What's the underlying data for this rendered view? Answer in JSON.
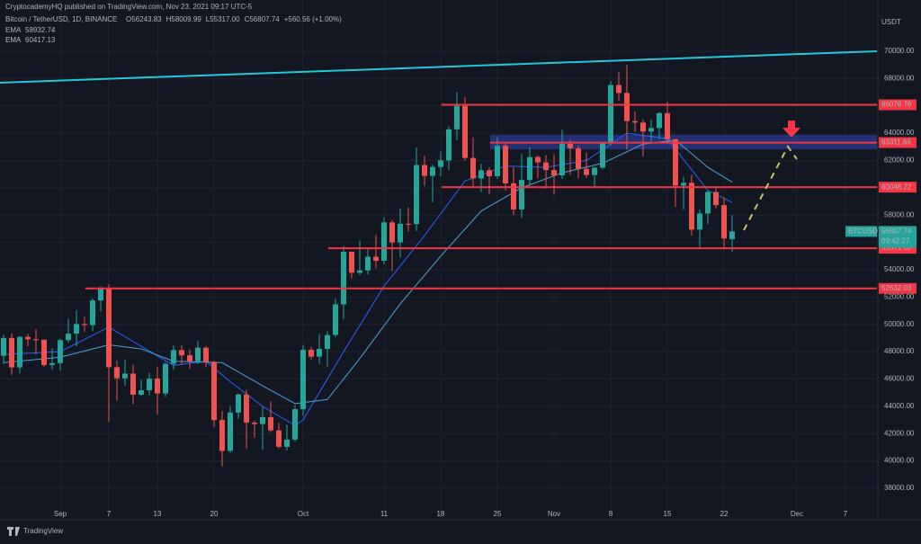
{
  "header": {
    "publisher": "CryptocademyHQ published on TradingView.com, Nov 23, 2021 09:17 UTC-5",
    "symbol_line": "Bitcoin / TetherUSD, 1D, BINANCE",
    "ohlc": [
      "O56243.83",
      "H58009.99",
      "L55317.00",
      "C56807.74",
      "+560.56 (+1.00%)"
    ],
    "brand": "TradingView"
  },
  "chart_data": {
    "type": "candlestick",
    "currency": "USDT",
    "symbol": "BTCUSDT",
    "countdown": "09:42:27",
    "up_color": "#26a69a",
    "down_color": "#ef5350",
    "x": [
      -7,
      -6,
      -5,
      -4,
      -3,
      -2,
      -1,
      0,
      1,
      2,
      3,
      4,
      5,
      6,
      7,
      8,
      9,
      10,
      11,
      12,
      13,
      14,
      15,
      16,
      17,
      18,
      19,
      20,
      21,
      22,
      23,
      24,
      25,
      26,
      27,
      28,
      29,
      30,
      31,
      32,
      33,
      34,
      35,
      36,
      37,
      38,
      39,
      40,
      41,
      42,
      43,
      44,
      45,
      46,
      47,
      48,
      49,
      50,
      51,
      52,
      53,
      54,
      55,
      56,
      57,
      58,
      59,
      60,
      61,
      62,
      63,
      64,
      65,
      66,
      67,
      68,
      69,
      70,
      71,
      72,
      73,
      74,
      75,
      76,
      77,
      78,
      79,
      80,
      81,
      82,
      83
    ],
    "open": [
      47700,
      49004,
      46852,
      49088,
      48911,
      48877,
      47025,
      47166,
      48847,
      49327,
      50025,
      49944,
      51753,
      52663,
      46863,
      46048,
      46395,
      44850,
      45173,
      46026,
      44940,
      47111,
      48121,
      47737,
      47299,
      48292,
      47241,
      42996,
      40734,
      43543,
      44865,
      42811,
      42703,
      43208,
      42236,
      41034,
      41564,
      43790,
      48141,
      47634,
      48200,
      49224,
      51471,
      55315,
      53785,
      53951,
      54949,
      54659,
      57471,
      56005,
      57367,
      57347,
      61672,
      60875,
      61528,
      62009,
      64280,
      66001,
      62193,
      60688,
      61286,
      60852,
      63078,
      60328,
      58413,
      60575,
      62253,
      61859,
      61299,
      60911,
      63219,
      62896,
      61395,
      60937,
      61470,
      63273,
      67525,
      66947,
      64882,
      64774,
      64122,
      64380,
      65466,
      63557,
      60161,
      60368,
      56942,
      58119,
      59697,
      58731,
      56243.83
    ],
    "high": [
      49250,
      49350,
      49150,
      49300,
      49650,
      48900,
      48250,
      48950,
      50400,
      51050,
      50550,
      51900,
      52800,
      52920,
      47350,
      47400,
      47050,
      45950,
      46450,
      46900,
      47250,
      48450,
      48500,
      48150,
      48800,
      48400,
      47350,
      43650,
      44000,
      44950,
      45200,
      42950,
      43950,
      44350,
      42800,
      42650,
      44100,
      48500,
      48350,
      49300,
      49500,
      51900,
      55750,
      55350,
      56100,
      55500,
      56550,
      57850,
      57650,
      58500,
      58550,
      62950,
      62350,
      61700,
      62650,
      64500,
      67000,
      66650,
      63700,
      61750,
      61500,
      63700,
      63300,
      61500,
      62500,
      62950,
      62350,
      62400,
      62450,
      64250,
      63500,
      63100,
      62600,
      61550,
      63300,
      67800,
      68500,
      69000,
      65600,
      65000,
      65000,
      65550,
      66300,
      63600,
      60800,
      60950,
      58400,
      59850,
      60050,
      59300,
      58009.99
    ],
    "low": [
      47100,
      46300,
      46400,
      48400,
      47800,
      46900,
      46700,
      46600,
      48650,
      48400,
      49450,
      49500,
      50950,
      42843,
      44400,
      45500,
      44150,
      44750,
      44800,
      43400,
      44700,
      46700,
      47050,
      46750,
      47100,
      46850,
      42500,
      39600,
      40600,
      43100,
      40900,
      41700,
      40800,
      42100,
      40900,
      40750,
      41400,
      43300,
      47400,
      47100,
      46900,
      49050,
      50400,
      53350,
      53600,
      53650,
      54100,
      54400,
      53900,
      54900,
      56800,
      56850,
      60150,
      58950,
      60850,
      61300,
      63500,
      62000,
      60000,
      59700,
      59500,
      60650,
      59800,
      58000,
      57800,
      60150,
      60700,
      59950,
      59500,
      60650,
      60950,
      60700,
      60700,
      60000,
      61350,
      63100,
      66400,
      62800,
      64100,
      62300,
      63400,
      63550,
      63400,
      58600,
      58400,
      56500,
      55600,
      57350,
      58500,
      55600,
      55317
    ],
    "close": [
      49004,
      46852,
      49088,
      48911,
      48877,
      47025,
      47166,
      48847,
      49327,
      50025,
      49944,
      51753,
      52663,
      46863,
      46048,
      46395,
      44850,
      45173,
      46026,
      44940,
      47111,
      48121,
      47737,
      47299,
      48292,
      47241,
      42996,
      40734,
      43543,
      44865,
      42811,
      42703,
      43208,
      42236,
      41034,
      41564,
      43790,
      48141,
      47634,
      48200,
      49224,
      51471,
      55315,
      53785,
      53951,
      54949,
      54659,
      57471,
      56005,
      57367,
      57347,
      61672,
      60875,
      61528,
      62009,
      64280,
      66001,
      62193,
      60688,
      61286,
      60852,
      63078,
      60328,
      58413,
      60575,
      62253,
      61859,
      61299,
      60911,
      63219,
      62896,
      61395,
      60937,
      61470,
      63273,
      67525,
      66947,
      64882,
      64774,
      64122,
      64380,
      65466,
      63557,
      60161,
      60368,
      56942,
      58119,
      59697,
      58731,
      56289,
      56807.74
    ],
    "xlim": [
      -7.444,
      100.889
    ],
    "ylim": [
      35893,
      73753
    ],
    "xticks": [
      {
        "value": 0,
        "label": "Sep"
      },
      {
        "value": 6,
        "label": "7"
      },
      {
        "value": 12,
        "label": "13"
      },
      {
        "value": 19,
        "label": "20"
      },
      {
        "value": 30,
        "label": "Oct"
      },
      {
        "value": 40,
        "label": "11"
      },
      {
        "value": 47,
        "label": "18"
      },
      {
        "value": 54,
        "label": "25"
      },
      {
        "value": 61,
        "label": "Nov"
      },
      {
        "value": 68,
        "label": "8"
      },
      {
        "value": 75,
        "label": "15"
      },
      {
        "value": 82,
        "label": "22"
      },
      {
        "value": 91,
        "label": "Dec"
      },
      {
        "value": 97,
        "label": "7"
      }
    ],
    "yticks": [
      {
        "value": 38000,
        "label": "38000.00"
      },
      {
        "value": 40000,
        "label": "40000.00"
      },
      {
        "value": 42000,
        "label": "42000.00"
      },
      {
        "value": 44000,
        "label": "44000.00"
      },
      {
        "value": 46000,
        "label": "46000.00"
      },
      {
        "value": 48000,
        "label": "48000.00"
      },
      {
        "value": 50000,
        "label": "50000.00"
      },
      {
        "value": 52000,
        "label": "52000.00"
      },
      {
        "value": 54000,
        "label": "54000.00"
      },
      {
        "value": 56000,
        "label": "56000.00"
      },
      {
        "value": 58000,
        "label": "58000.00"
      },
      {
        "value": 60000,
        "label": "60000.00"
      },
      {
        "value": 62000,
        "label": "62000.00"
      },
      {
        "value": 64000,
        "label": "64000.00"
      },
      {
        "value": 66000,
        "label": "66000.00"
      },
      {
        "value": 68000,
        "label": "68000.00"
      },
      {
        "value": 70000,
        "label": "70000.00"
      }
    ],
    "ema": [
      {
        "name": "EMA",
        "color": "#2962ff",
        "x": [
          -7,
          0,
          6,
          10,
          14,
          18,
          21,
          25,
          29,
          30,
          35,
          40,
          45,
          50,
          55,
          60,
          65,
          70,
          75,
          80,
          83
        ],
        "values": [
          47800,
          48000,
          49800,
          48400,
          47000,
          47300,
          45800,
          44000,
          42600,
          43000,
          48000,
          52800,
          56500,
          60500,
          61600,
          61500,
          62000,
          64000,
          63600,
          59800,
          58932.74
        ]
      },
      {
        "name": "EMA",
        "color": "#4fa3d9",
        "x": [
          -7,
          0,
          6,
          10,
          14,
          20,
          25,
          29,
          33,
          37,
          42,
          47,
          52,
          57,
          62,
          67,
          72,
          76,
          80,
          83
        ],
        "values": [
          47200,
          47600,
          48500,
          48200,
          47300,
          47200,
          45500,
          44200,
          44500,
          47500,
          51500,
          55000,
          58300,
          60000,
          61100,
          61800,
          63200,
          63500,
          61500,
          60417.13
        ]
      }
    ],
    "trendline": {
      "color": "#26c6da",
      "x": [
        -7.444,
        100.889
      ],
      "values": [
        67696,
        70000
      ]
    },
    "zone": {
      "low": 62820,
      "high": 63880,
      "x_start": 53.1,
      "color": "#2a3a8c"
    },
    "levels": [
      {
        "value": 66078.76,
        "x_start": 47.1
      },
      {
        "value": 63311.66,
        "x_start": 53.1
      },
      {
        "value": 60048.22,
        "x_start": 47.1
      },
      {
        "value": 55571.63,
        "x_start": 33.1
      },
      {
        "value": 52632.03,
        "x_start": 3.1
      }
    ],
    "level_color": "#f23645"
  }
}
